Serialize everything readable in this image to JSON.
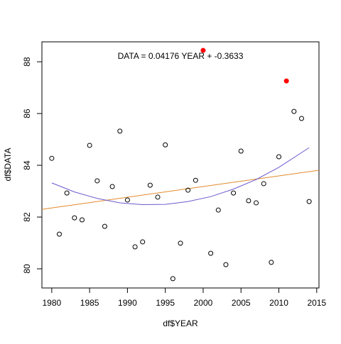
{
  "chart_data": {
    "type": "scatter",
    "xlabel": "df$YEAR",
    "ylabel": "df$DATA",
    "annotation": "DATA = 0.04176 YEAR + -0.3633",
    "xlim": [
      1978.7,
      2015.3
    ],
    "ylim": [
      79.26,
      88.77
    ],
    "xticks": [
      1980,
      1985,
      1990,
      1995,
      2000,
      2005,
      2010,
      2015
    ],
    "yticks": [
      80,
      82,
      84,
      86,
      88
    ],
    "series": [
      {
        "style": "points",
        "color": "#000000",
        "fill": "none",
        "x": [
          1980,
          1981,
          1982,
          1983,
          1984,
          1985,
          1986,
          1987,
          1988,
          1989,
          1990,
          1991,
          1992,
          1993,
          1994,
          1995,
          1996,
          1997,
          1998,
          1999,
          2001,
          2002,
          2003,
          2004,
          2005,
          2006,
          2007,
          2008,
          2009,
          2010,
          2012,
          2013,
          2014
        ],
        "values": [
          84.27,
          81.34,
          82.93,
          81.97,
          81.89,
          84.77,
          83.4,
          81.64,
          83.18,
          85.32,
          82.66,
          80.85,
          81.04,
          83.23,
          82.77,
          84.79,
          79.62,
          80.99,
          83.04,
          83.42,
          80.6,
          82.27,
          80.16,
          82.93,
          84.55,
          82.63,
          82.55,
          83.29,
          80.25,
          84.33,
          86.08,
          85.81,
          82.6
        ]
      },
      {
        "style": "points",
        "color": "#ff0000",
        "fill": "#ff0000",
        "x": [
          2000,
          2011
        ],
        "values": [
          88.44,
          87.26
        ]
      },
      {
        "style": "line",
        "color": "#e08a2c",
        "x": [
          1978.7,
          2015.3
        ],
        "values": [
          82.3,
          83.81
        ]
      },
      {
        "style": "line",
        "color": "#6a5acd",
        "x": [
          1980,
          1983,
          1986,
          1989,
          1992,
          1995,
          1998,
          2001,
          2004,
          2007,
          2010,
          2014
        ],
        "values": [
          83.32,
          82.97,
          82.72,
          82.55,
          82.48,
          82.49,
          82.6,
          82.79,
          83.08,
          83.45,
          83.92,
          84.68
        ]
      }
    ]
  }
}
